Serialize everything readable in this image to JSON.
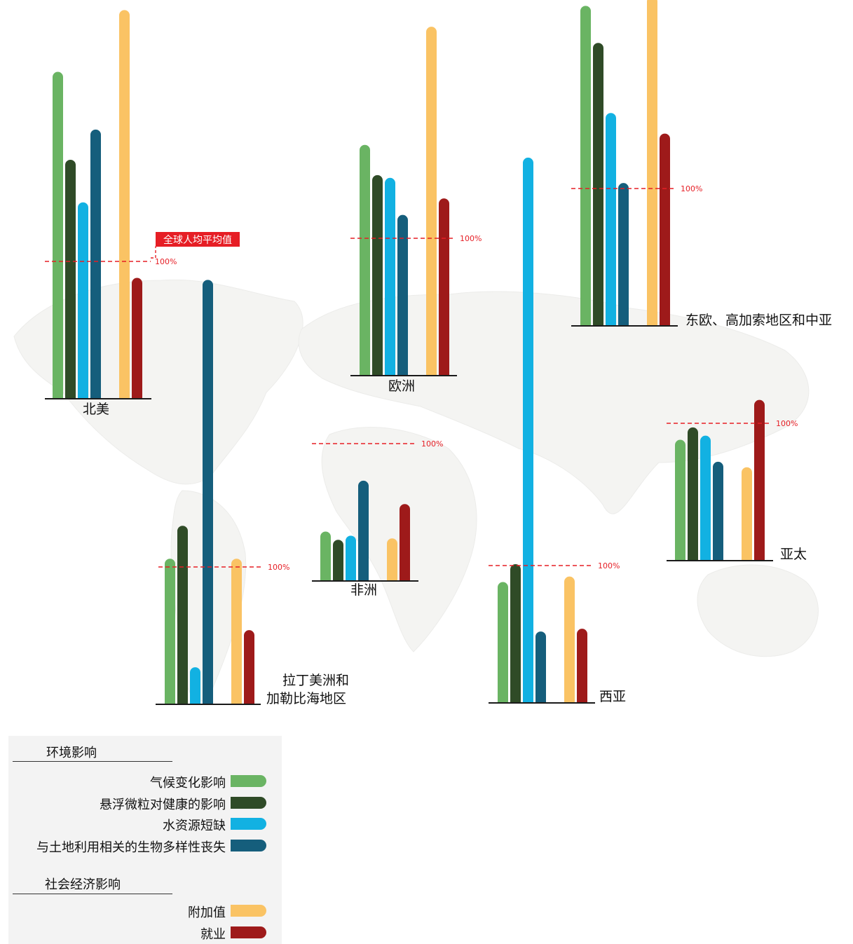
{
  "colors": {
    "climate": "#6ab463",
    "particulate": "#2f4b27",
    "water": "#12b1e2",
    "biodiversity": "#155e7c",
    "value_added": "#fac364",
    "employment": "#9e1a1a",
    "reference": "#e61e25",
    "baseline": "#1a1a1a"
  },
  "annotation": {
    "label": "全球人均平均值"
  },
  "reference_label": "100%",
  "chart_data": {
    "type": "bar",
    "reference_value": 100,
    "series": [
      {
        "name": "气候变化影响",
        "group": "环境影响"
      },
      {
        "name": "悬浮微粒对健康的影响",
        "group": "环境影响"
      },
      {
        "name": "水资源短缺",
        "group": "环境影响"
      },
      {
        "name": "与土地利用相关的生物多样性丧失",
        "group": "环境影响"
      },
      {
        "name": "附加值",
        "group": "社会经济影响"
      },
      {
        "name": "就业",
        "group": "社会经济影响"
      }
    ],
    "regions": [
      {
        "id": "na",
        "label": [
          "北美"
        ],
        "values": [
          238,
          174,
          143,
          196,
          283,
          88
        ]
      },
      {
        "id": "eu",
        "label": [
          "欧洲"
        ],
        "values": [
          168,
          146,
          144,
          117,
          254,
          129
        ]
      },
      {
        "id": "ee",
        "label": [
          "东欧、高加索地区和中亚"
        ],
        "values": [
          233,
          206,
          155,
          104,
          240,
          140
        ]
      },
      {
        "id": "latam",
        "label": [
          "拉丁美洲和",
          "加勒比海地区"
        ],
        "values": [
          106,
          130,
          27,
          309,
          106,
          54
        ]
      },
      {
        "id": "af",
        "label": [
          "非洲"
        ],
        "values": [
          36,
          30,
          33,
          73,
          31,
          56
        ]
      },
      {
        "id": "wa",
        "label": [
          "西亚"
        ],
        "values": [
          88,
          101,
          397,
          52,
          92,
          54
        ]
      },
      {
        "id": "ap",
        "label": [
          "亚太"
        ],
        "values": [
          88,
          97,
          91,
          72,
          68,
          117
        ]
      }
    ]
  },
  "legend": {
    "env_title": "环境影响",
    "soc_title": "社会经济影响"
  }
}
